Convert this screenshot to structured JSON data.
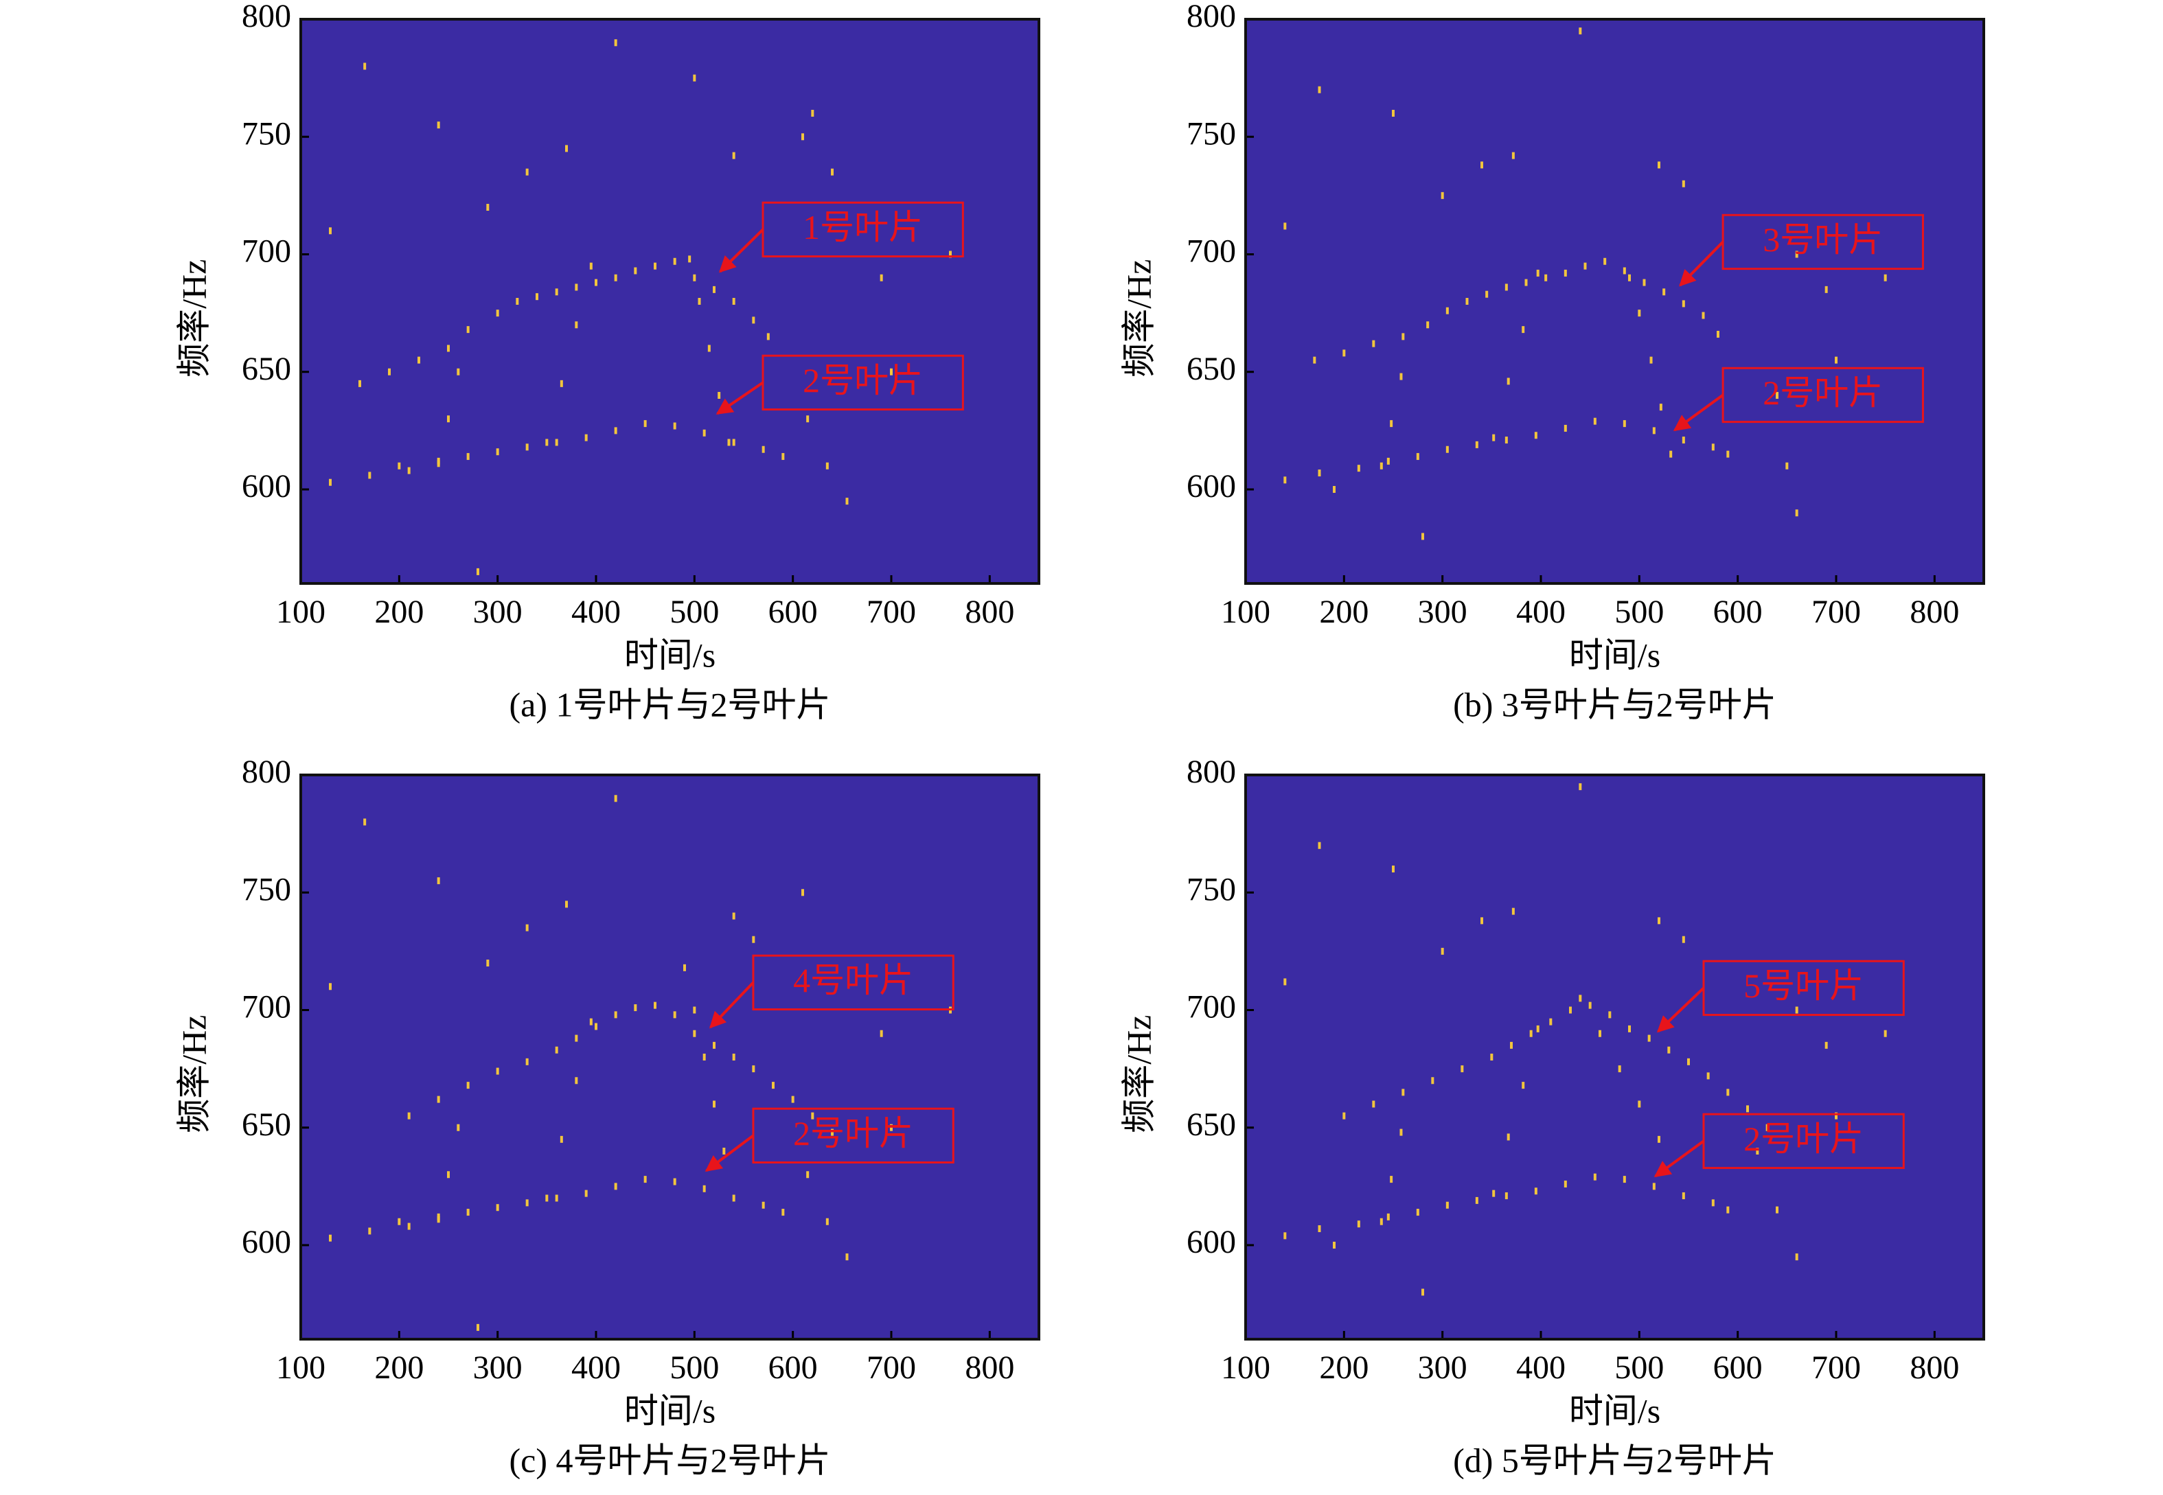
{
  "chart_data": [
    {
      "type": "scatter",
      "caption": "(a) 1号叶片与2号叶片",
      "xlabel": "时间/s",
      "ylabel": "频率/Hz",
      "xlim": [
        100,
        850
      ],
      "ylim": [
        560,
        800
      ],
      "xticks": [
        100,
        200,
        300,
        400,
        500,
        600,
        700,
        800
      ],
      "yticks": [
        600,
        650,
        700,
        750,
        800
      ],
      "background": "#3b2ba3",
      "series": [
        {
          "color": "#f2c53d",
          "x": [
            160,
            190,
            220,
            250,
            270,
            300,
            320,
            340,
            360,
            380,
            400,
            420,
            440,
            460,
            480,
            500,
            520,
            540,
            560,
            575,
            130,
            170,
            210,
            240,
            270,
            300,
            330,
            360,
            390,
            420,
            450,
            480,
            510,
            540,
            570,
            590,
            240,
            250,
            260,
            350,
            365,
            380,
            395,
            495,
            505,
            515,
            525,
            535,
            615,
            635,
            655,
            620,
            640,
            165,
            240,
            290,
            330,
            370,
            420,
            500,
            540,
            200,
            280,
            700,
            760,
            690,
            610,
            130
          ],
          "y": [
            645,
            650,
            655,
            660,
            668,
            675,
            680,
            682,
            684,
            686,
            688,
            690,
            693,
            695,
            697,
            690,
            685,
            680,
            672,
            665,
            603,
            606,
            608,
            611,
            614,
            616,
            618,
            620,
            622,
            625,
            628,
            627,
            624,
            620,
            617,
            614,
            612,
            630,
            650,
            620,
            645,
            670,
            695,
            698,
            680,
            660,
            640,
            620,
            630,
            610,
            595,
            760,
            735,
            780,
            755,
            720,
            735,
            745,
            790,
            775,
            742,
            610,
            565,
            650,
            700,
            690,
            750,
            710
          ]
        }
      ],
      "annotations": [
        {
          "text": "1号叶片"
        },
        {
          "text": "2号叶片"
        }
      ]
    },
    {
      "type": "scatter",
      "caption": "(b) 3号叶片与2号叶片",
      "xlabel": "时间/s",
      "ylabel": "频率/Hz",
      "xlim": [
        100,
        850
      ],
      "ylim": [
        560,
        800
      ],
      "xticks": [
        100,
        200,
        300,
        400,
        500,
        600,
        700,
        800
      ],
      "yticks": [
        600,
        650,
        700,
        750,
        800
      ],
      "background": "#3b2ba3",
      "series": [
        {
          "color": "#f2c53d",
          "x": [
            170,
            200,
            230,
            260,
            285,
            305,
            325,
            345,
            365,
            385,
            405,
            425,
            445,
            465,
            485,
            505,
            525,
            545,
            565,
            580,
            140,
            175,
            215,
            245,
            275,
            305,
            335,
            365,
            395,
            425,
            455,
            485,
            515,
            545,
            575,
            590,
            238,
            248,
            258,
            352,
            367,
            382,
            397,
            490,
            500,
            512,
            522,
            532,
            640,
            650,
            660,
            175,
            250,
            300,
            340,
            372,
            440,
            520,
            545,
            190,
            280,
            700,
            750,
            690,
            660,
            140
          ],
          "y": [
            655,
            658,
            662,
            665,
            670,
            676,
            680,
            683,
            686,
            688,
            690,
            692,
            695,
            697,
            693,
            688,
            684,
            679,
            674,
            666,
            604,
            607,
            609,
            612,
            614,
            617,
            619,
            621,
            623,
            626,
            629,
            628,
            625,
            621,
            618,
            615,
            610,
            628,
            648,
            622,
            646,
            668,
            692,
            690,
            675,
            655,
            635,
            615,
            640,
            610,
            590,
            770,
            760,
            725,
            738,
            742,
            795,
            738,
            730,
            600,
            580,
            655,
            690,
            685,
            700,
            712
          ]
        }
      ],
      "annotations": [
        {
          "text": "3号叶片"
        },
        {
          "text": "2号叶片"
        }
      ]
    },
    {
      "type": "scatter",
      "caption": "(c) 4号叶片与2号叶片",
      "xlabel": "时间/s",
      "ylabel": "频率/Hz",
      "xlim": [
        100,
        850
      ],
      "ylim": [
        560,
        800
      ],
      "xticks": [
        100,
        200,
        300,
        400,
        500,
        600,
        700,
        800
      ],
      "yticks": [
        600,
        650,
        700,
        750,
        800
      ],
      "background": "#3b2ba3",
      "series": [
        {
          "color": "#f2c53d",
          "x": [
            210,
            240,
            270,
            300,
            330,
            360,
            380,
            400,
            420,
            440,
            460,
            480,
            500,
            520,
            540,
            560,
            580,
            600,
            620,
            640,
            130,
            170,
            210,
            240,
            270,
            300,
            330,
            360,
            390,
            420,
            450,
            480,
            510,
            540,
            570,
            590,
            240,
            250,
            260,
            350,
            365,
            380,
            395,
            490,
            500,
            510,
            520,
            530,
            615,
            635,
            655,
            165,
            240,
            290,
            330,
            370,
            420,
            540,
            560,
            200,
            280,
            700,
            760,
            690,
            610,
            130
          ],
          "y": [
            655,
            662,
            668,
            674,
            678,
            683,
            688,
            693,
            698,
            701,
            702,
            698,
            690,
            685,
            680,
            675,
            668,
            662,
            655,
            648,
            603,
            606,
            608,
            611,
            614,
            616,
            618,
            620,
            622,
            625,
            628,
            627,
            624,
            620,
            617,
            614,
            612,
            630,
            650,
            620,
            645,
            670,
            695,
            718,
            700,
            680,
            660,
            640,
            630,
            610,
            595,
            780,
            755,
            720,
            735,
            745,
            790,
            740,
            730,
            610,
            565,
            650,
            700,
            690,
            750,
            710
          ]
        }
      ],
      "annotations": [
        {
          "text": "4号叶片"
        },
        {
          "text": "2号叶片"
        }
      ]
    },
    {
      "type": "scatter",
      "caption": "(d) 5号叶片与2号叶片",
      "xlabel": "时间/s",
      "ylabel": "频率/Hz",
      "xlim": [
        100,
        850
      ],
      "ylim": [
        560,
        800
      ],
      "xticks": [
        100,
        200,
        300,
        400,
        500,
        600,
        700,
        800
      ],
      "yticks": [
        600,
        650,
        700,
        750,
        800
      ],
      "background": "#3b2ba3",
      "series": [
        {
          "color": "#f2c53d",
          "x": [
            200,
            230,
            260,
            290,
            320,
            350,
            370,
            390,
            410,
            430,
            450,
            470,
            490,
            510,
            530,
            550,
            570,
            590,
            610,
            630,
            140,
            175,
            215,
            245,
            275,
            305,
            335,
            365,
            395,
            425,
            455,
            485,
            515,
            545,
            575,
            590,
            238,
            248,
            258,
            352,
            367,
            382,
            397,
            440,
            460,
            480,
            500,
            520,
            620,
            640,
            660,
            175,
            250,
            300,
            340,
            372,
            440,
            520,
            545,
            190,
            280,
            700,
            750,
            690,
            660,
            140
          ],
          "y": [
            655,
            660,
            665,
            670,
            675,
            680,
            685,
            690,
            695,
            700,
            702,
            698,
            692,
            688,
            683,
            678,
            672,
            665,
            658,
            650,
            604,
            607,
            609,
            612,
            614,
            617,
            619,
            621,
            623,
            626,
            629,
            628,
            625,
            621,
            618,
            615,
            610,
            628,
            648,
            622,
            646,
            668,
            692,
            705,
            690,
            675,
            660,
            645,
            640,
            615,
            595,
            770,
            760,
            725,
            738,
            742,
            795,
            738,
            730,
            600,
            580,
            655,
            690,
            685,
            700,
            712
          ]
        }
      ],
      "annotations": [
        {
          "text": "5号叶片"
        },
        {
          "text": "2号叶片"
        }
      ]
    }
  ]
}
